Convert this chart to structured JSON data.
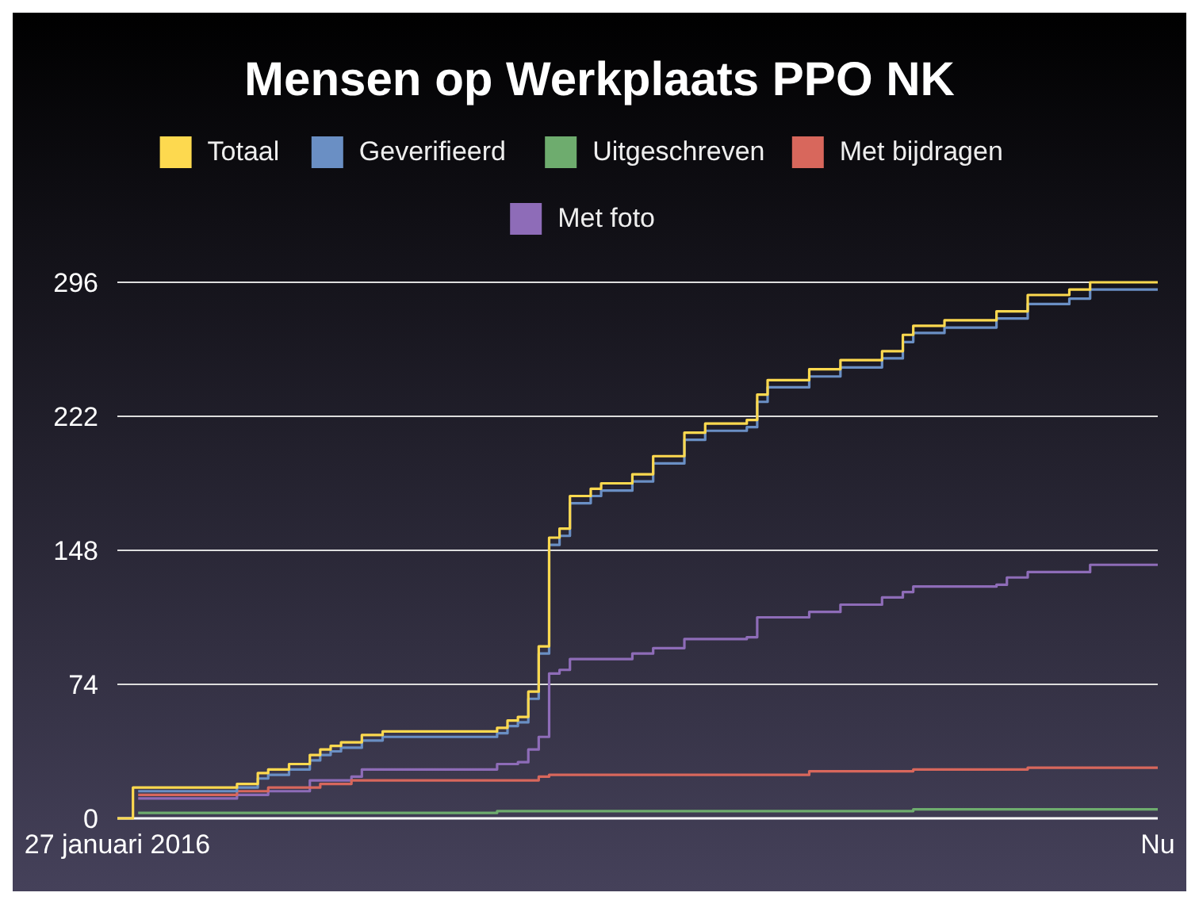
{
  "chart_data": {
    "type": "step",
    "title": "Mensen op Werkplaats PPO NK",
    "legend": "top",
    "grid": "y",
    "marker": "none",
    "line_style": "solid",
    "categories": [
      "27 januari 2016",
      null,
      null,
      null,
      null,
      null,
      null,
      null,
      null,
      null,
      null,
      null,
      null,
      null,
      null,
      null,
      null,
      null,
      null,
      null,
      null,
      null,
      null,
      null,
      null,
      null,
      null,
      null,
      null,
      null,
      null,
      null,
      null,
      null,
      null,
      null,
      null,
      null,
      null,
      null,
      null,
      null,
      null,
      null,
      null,
      null,
      null,
      null,
      null,
      null,
      null,
      null,
      null,
      null,
      null,
      null,
      null,
      null,
      null,
      null,
      null,
      null,
      null,
      null,
      null,
      null,
      null,
      null,
      null,
      null,
      null,
      null,
      null,
      null,
      null,
      null,
      null,
      null,
      null,
      null,
      null,
      null,
      null,
      null,
      null,
      null,
      null,
      null,
      null,
      null,
      null,
      null,
      null,
      null,
      null,
      null,
      null,
      null,
      null,
      null,
      "Nu"
    ],
    "ylim": [
      0,
      296
    ],
    "yticks": [
      0,
      74,
      148,
      222,
      296
    ],
    "series": [
      {
        "name": "Totaal",
        "color": "#fdd94f",
        "values": [
          0,
          0,
          17,
          17,
          17,
          17,
          17,
          17,
          17,
          17,
          17,
          17,
          19,
          19,
          25,
          27,
          27,
          30,
          30,
          35,
          38,
          40,
          42,
          42,
          46,
          46,
          48,
          48,
          48,
          48,
          48,
          48,
          48,
          48,
          48,
          48,
          48,
          50,
          54,
          56,
          70,
          95,
          155,
          160,
          178,
          178,
          182,
          185,
          185,
          185,
          190,
          190,
          200,
          200,
          200,
          213,
          213,
          218,
          218,
          218,
          218,
          220,
          234,
          242,
          242,
          242,
          242,
          248,
          248,
          248,
          253,
          253,
          253,
          253,
          258,
          258,
          267,
          272,
          272,
          272,
          275,
          275,
          275,
          275,
          275,
          280,
          280,
          280,
          289,
          289,
          289,
          289,
          292,
          292,
          296,
          296,
          296,
          296,
          296,
          296,
          296
        ]
      },
      {
        "name": "Geverifieerd",
        "color": "#6a8fc4",
        "values": [
          null,
          null,
          15,
          15,
          15,
          15,
          15,
          15,
          15,
          15,
          15,
          15,
          17,
          17,
          22,
          24,
          24,
          27,
          27,
          32,
          35,
          37,
          39,
          39,
          43,
          43,
          45,
          45,
          45,
          45,
          45,
          45,
          45,
          45,
          45,
          45,
          45,
          47,
          51,
          53,
          66,
          91,
          151,
          156,
          174,
          174,
          178,
          181,
          181,
          181,
          186,
          186,
          196,
          196,
          196,
          209,
          209,
          214,
          214,
          214,
          214,
          216,
          230,
          238,
          238,
          238,
          238,
          244,
          244,
          244,
          249,
          249,
          249,
          249,
          254,
          254,
          263,
          268,
          268,
          268,
          271,
          271,
          271,
          271,
          271,
          276,
          276,
          276,
          284,
          284,
          284,
          284,
          287,
          287,
          292,
          292,
          292,
          292,
          292,
          292,
          292
        ]
      },
      {
        "name": "Uitgeschreven",
        "color": "#6eac6e",
        "values": [
          null,
          null,
          3,
          3,
          3,
          3,
          3,
          3,
          3,
          3,
          3,
          3,
          3,
          3,
          3,
          3,
          3,
          3,
          3,
          3,
          3,
          3,
          3,
          3,
          3,
          3,
          3,
          3,
          3,
          3,
          3,
          3,
          3,
          3,
          3,
          3,
          3,
          4,
          4,
          4,
          4,
          4,
          4,
          4,
          4,
          4,
          4,
          4,
          4,
          4,
          4,
          4,
          4,
          4,
          4,
          4,
          4,
          4,
          4,
          4,
          4,
          4,
          4,
          4,
          4,
          4,
          4,
          4,
          4,
          4,
          4,
          4,
          4,
          4,
          4,
          4,
          4,
          5,
          5,
          5,
          5,
          5,
          5,
          5,
          5,
          5,
          5,
          5,
          5,
          5,
          5,
          5,
          5,
          5,
          5,
          5,
          5,
          5,
          5,
          5,
          5
        ]
      },
      {
        "name": "Met bijdragen",
        "color": "#d8675c",
        "values": [
          null,
          null,
          13,
          13,
          13,
          13,
          13,
          13,
          13,
          13,
          13,
          13,
          15,
          15,
          15,
          17,
          17,
          17,
          17,
          17,
          19,
          19,
          19,
          21,
          21,
          21,
          21,
          21,
          21,
          21,
          21,
          21,
          21,
          21,
          21,
          21,
          21,
          21,
          21,
          21,
          21,
          23,
          24,
          24,
          24,
          24,
          24,
          24,
          24,
          24,
          24,
          24,
          24,
          24,
          24,
          24,
          24,
          24,
          24,
          24,
          24,
          24,
          24,
          24,
          24,
          24,
          24,
          26,
          26,
          26,
          26,
          26,
          26,
          26,
          26,
          26,
          26,
          27,
          27,
          27,
          27,
          27,
          27,
          27,
          27,
          27,
          27,
          27,
          28,
          28,
          28,
          28,
          28,
          28,
          28,
          28,
          28,
          28,
          28,
          28,
          28
        ]
      },
      {
        "name": "Met foto",
        "color": "#8e6cb8",
        "values": [
          null,
          null,
          11,
          11,
          11,
          11,
          11,
          11,
          11,
          11,
          11,
          11,
          13,
          13,
          13,
          15,
          15,
          15,
          15,
          21,
          21,
          21,
          21,
          23,
          27,
          27,
          27,
          27,
          27,
          27,
          27,
          27,
          27,
          27,
          27,
          27,
          27,
          30,
          30,
          31,
          38,
          45,
          80,
          82,
          88,
          88,
          88,
          88,
          88,
          88,
          91,
          91,
          94,
          94,
          94,
          99,
          99,
          99,
          99,
          99,
          99,
          100,
          111,
          111,
          111,
          111,
          111,
          114,
          114,
          114,
          118,
          118,
          118,
          118,
          122,
          122,
          125,
          128,
          128,
          128,
          128,
          128,
          128,
          128,
          128,
          129,
          133,
          133,
          136,
          136,
          136,
          136,
          136,
          136,
          140,
          140,
          140,
          140,
          140,
          140,
          140
        ]
      }
    ]
  }
}
